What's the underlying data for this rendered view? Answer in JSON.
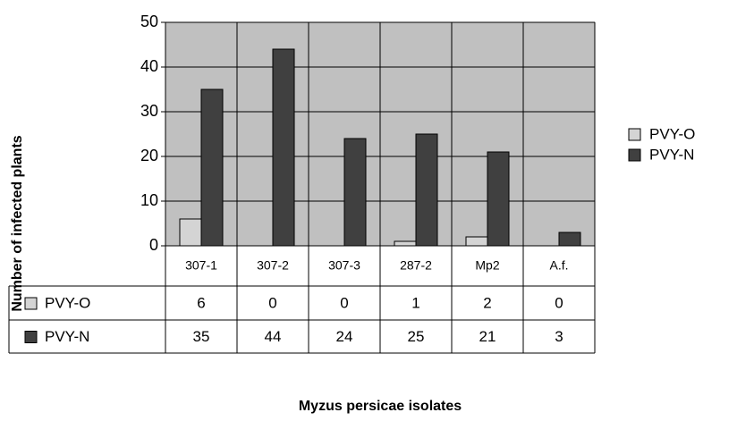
{
  "chart_data": {
    "type": "bar",
    "categories": [
      "307-1",
      "307-2",
      "307-3",
      "287-2",
      "Mp2",
      "A.f."
    ],
    "series": [
      {
        "name": "PVY-O",
        "color": "#d4d4d4",
        "values": [
          6,
          0,
          0,
          1,
          2,
          0
        ]
      },
      {
        "name": "PVY-N",
        "color": "#404040",
        "values": [
          35,
          44,
          24,
          25,
          21,
          3
        ]
      }
    ],
    "ylim": [
      0,
      50
    ],
    "yticks": [
      0,
      10,
      20,
      30,
      40,
      50
    ],
    "grid": true,
    "y_label": "Number of infected plants",
    "x_label": "Myzus persicae isolates",
    "plot_background": "#c0c0c0",
    "legend": "right"
  }
}
